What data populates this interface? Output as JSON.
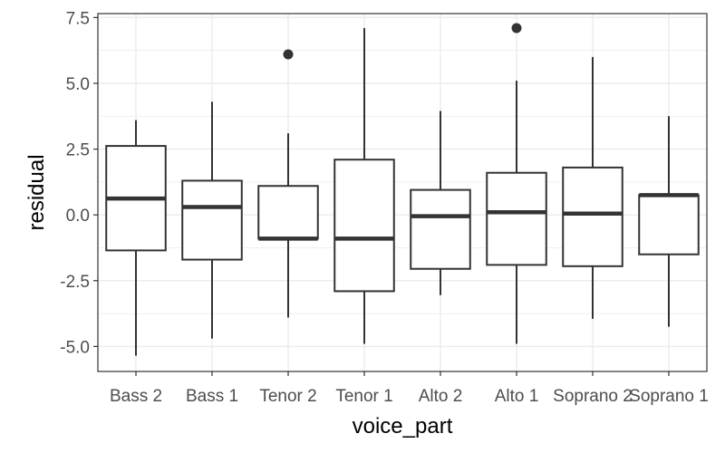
{
  "chart_data": {
    "type": "boxplot",
    "xlabel": "voice_part",
    "ylabel": "residual",
    "categories": [
      "Bass 2",
      "Bass 1",
      "Tenor 2",
      "Tenor 1",
      "Alto 2",
      "Alto 1",
      "Soprano 2",
      "Soprano 1"
    ],
    "boxes": [
      {
        "whisker_low": -5.35,
        "q1": -1.35,
        "median": 0.62,
        "q3": 2.62,
        "whisker_high": 3.6,
        "outliers": []
      },
      {
        "whisker_low": -4.7,
        "q1": -1.7,
        "median": 0.3,
        "q3": 1.3,
        "whisker_high": 4.3,
        "outliers": []
      },
      {
        "whisker_low": -3.9,
        "q1": -0.9,
        "median": -0.9,
        "q3": 1.1,
        "whisker_high": 3.1,
        "outliers": [
          6.1
        ]
      },
      {
        "whisker_low": -4.9,
        "q1": -2.9,
        "median": -0.9,
        "q3": 2.1,
        "whisker_high": 7.1,
        "outliers": []
      },
      {
        "whisker_low": -3.05,
        "q1": -2.05,
        "median": -0.05,
        "q3": 0.95,
        "whisker_high": 3.95,
        "outliers": []
      },
      {
        "whisker_low": -4.9,
        "q1": -1.9,
        "median": 0.1,
        "q3": 1.6,
        "whisker_high": 5.1,
        "outliers": [
          7.1
        ]
      },
      {
        "whisker_low": -3.95,
        "q1": -1.95,
        "median": 0.05,
        "q3": 1.8,
        "whisker_high": 6.0,
        "outliers": []
      },
      {
        "whisker_low": -4.25,
        "q1": -1.5,
        "median": 0.75,
        "q3": 0.75,
        "whisker_high": 3.75,
        "outliers": []
      }
    ],
    "yticks": [
      -5.0,
      -2.5,
      0.0,
      2.5,
      5.0,
      7.5
    ],
    "ytick_labels": [
      "-5.0",
      "-2.5",
      "0.0",
      "2.5",
      "5.0",
      "7.5"
    ],
    "ylim": [
      -5.95,
      7.65
    ],
    "grid": true,
    "legend": "none",
    "colors": {
      "background": "#ffffff",
      "gridline": "#ebebeb",
      "panel_border": "#333333",
      "box_stroke": "#333333",
      "box_fill": "#ffffff",
      "outlier": "#333333"
    }
  }
}
